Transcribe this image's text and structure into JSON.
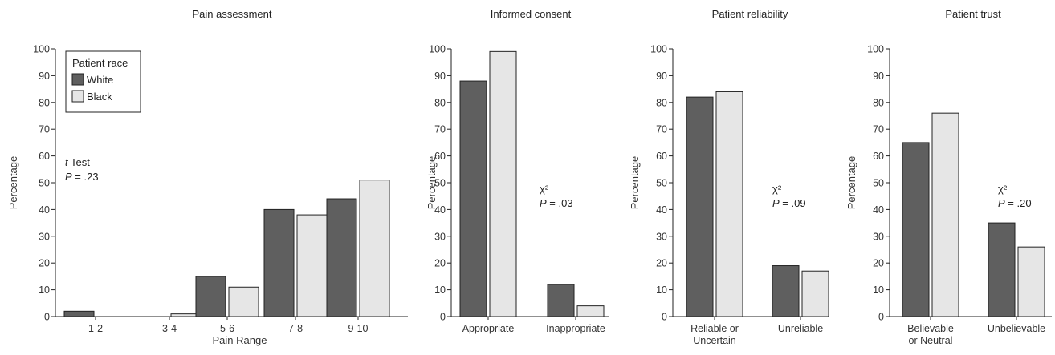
{
  "colors": {
    "white_series": "#5f5f5f",
    "black_series": "#e6e6e6",
    "stroke": "#222222"
  },
  "chart_data": [
    {
      "type": "bar",
      "title": "Pain assessment",
      "xlabel": "Pain Range",
      "ylabel": "Percentage",
      "ylim": [
        0,
        100
      ],
      "yticks": [
        0,
        10,
        20,
        30,
        40,
        50,
        60,
        70,
        80,
        90,
        100
      ],
      "categories": [
        [
          "1-2"
        ],
        [
          "3-4"
        ],
        [
          "5-6"
        ],
        [
          "7-8"
        ],
        [
          "9-10"
        ]
      ],
      "series": [
        {
          "name": "White",
          "values": [
            2,
            0,
            15,
            40,
            44
          ]
        },
        {
          "name": "Black",
          "values": [
            0,
            1,
            11,
            38,
            51
          ]
        }
      ],
      "legend": {
        "title": "Patient race",
        "entries": [
          "White",
          "Black"
        ],
        "position": "top-left"
      },
      "annotation": {
        "stat_italic": "t",
        "stat_rest": " Test",
        "p_italic": "P",
        "p_rest": " = .23"
      },
      "grid": false
    },
    {
      "type": "bar",
      "title": "Informed consent",
      "xlabel": "",
      "ylabel": "Percentage",
      "ylim": [
        0,
        100
      ],
      "yticks": [
        0,
        10,
        20,
        30,
        40,
        50,
        60,
        70,
        80,
        90,
        100
      ],
      "categories": [
        [
          "Appropriate"
        ],
        [
          "Inappropriate"
        ]
      ],
      "series": [
        {
          "name": "White",
          "values": [
            88,
            12
          ]
        },
        {
          "name": "Black",
          "values": [
            99,
            4
          ]
        }
      ],
      "annotation": {
        "stat_italic": "",
        "stat_rest": "χ²",
        "p_italic": "P",
        "p_rest": " = .03"
      },
      "grid": false
    },
    {
      "type": "bar",
      "title": "Patient reliability",
      "xlabel": "",
      "ylabel": "Percentage",
      "ylim": [
        0,
        100
      ],
      "yticks": [
        0,
        10,
        20,
        30,
        40,
        50,
        60,
        70,
        80,
        90,
        100
      ],
      "categories": [
        [
          "Reliable or",
          "Uncertain"
        ],
        [
          "Unreliable"
        ]
      ],
      "series": [
        {
          "name": "White",
          "values": [
            82,
            19
          ]
        },
        {
          "name": "Black",
          "values": [
            84,
            17
          ]
        }
      ],
      "annotation": {
        "stat_italic": "",
        "stat_rest": "χ²",
        "p_italic": "P",
        "p_rest": " = .09"
      },
      "grid": false
    },
    {
      "type": "bar",
      "title": "Patient trust",
      "xlabel": "",
      "ylabel": "Percentage",
      "ylim": [
        0,
        100
      ],
      "yticks": [
        0,
        10,
        20,
        30,
        40,
        50,
        60,
        70,
        80,
        90,
        100
      ],
      "categories": [
        [
          "Believable",
          "or Neutral"
        ],
        [
          "Unbelievable"
        ]
      ],
      "series": [
        {
          "name": "White",
          "values": [
            65,
            35
          ]
        },
        {
          "name": "Black",
          "values": [
            76,
            26
          ]
        }
      ],
      "annotation": {
        "stat_italic": "",
        "stat_rest": "χ²",
        "p_italic": "P",
        "p_rest": " = .20"
      },
      "grid": false
    }
  ]
}
